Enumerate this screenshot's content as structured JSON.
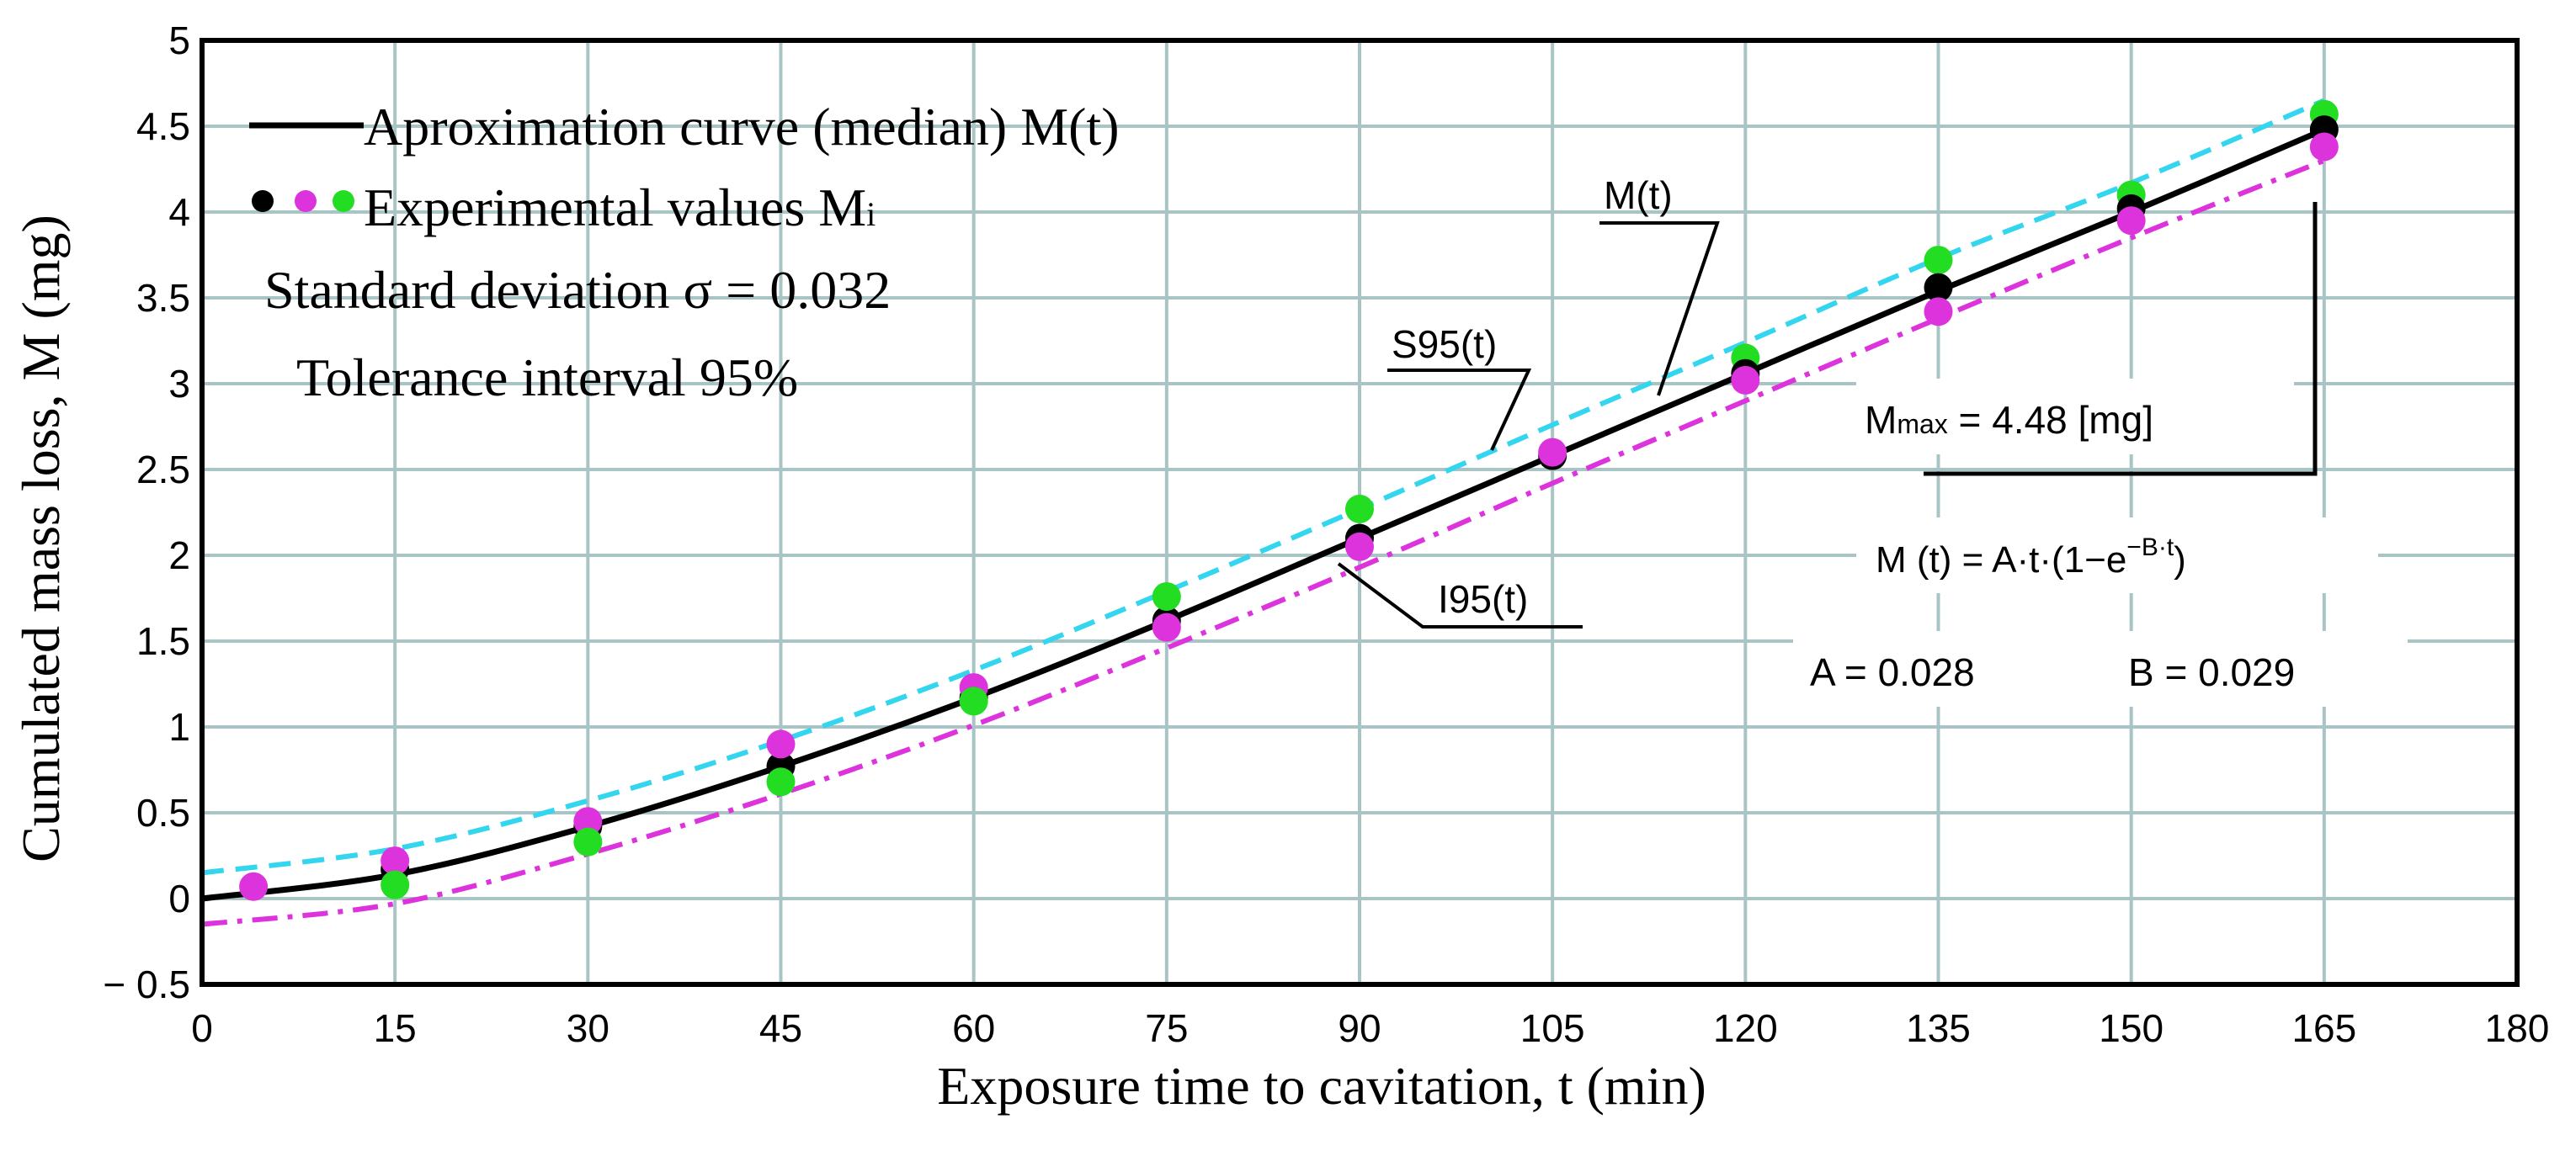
{
  "chart_data": {
    "type": "line",
    "xlabel": "Exposure time  to cavitation, t (min)",
    "ylabel": "Cumulated mass loss, M (mg)",
    "xlim": [
      0,
      180
    ],
    "ylim": [
      -0.5,
      5
    ],
    "x_ticks": [
      0,
      15,
      30,
      45,
      60,
      75,
      90,
      105,
      120,
      135,
      150,
      165,
      180
    ],
    "y_ticks": [
      -0.5,
      0,
      0.5,
      1,
      1.5,
      2,
      2.5,
      3,
      3.5,
      4,
      4.5,
      5
    ],
    "y_tick_labels": [
      "− 0.5",
      "0",
      "0.5",
      "1",
      "1.5",
      "2",
      "2.5",
      "3",
      "3.5",
      "4",
      "4.5",
      "5"
    ],
    "grid": true,
    "series": [
      {
        "name": "Aproximation curve (median) M(t)",
        "style": "solid",
        "color": "#000000",
        "x": [
          0,
          15,
          30,
          45,
          60,
          75,
          90,
          105,
          120,
          135,
          150,
          165
        ],
        "y": [
          0.0,
          0.14,
          0.42,
          0.77,
          1.17,
          1.62,
          2.1,
          2.58,
          3.06,
          3.54,
          4.0,
          4.48
        ]
      },
      {
        "name": "S95(t)",
        "style": "dashed",
        "color": "#33d6ee",
        "x": [
          0,
          15,
          30,
          45,
          60,
          75,
          90,
          105,
          120,
          135,
          150,
          165
        ],
        "y": [
          0.15,
          0.29,
          0.57,
          0.92,
          1.33,
          1.79,
          2.27,
          2.76,
          3.24,
          3.73,
          4.17,
          4.65
        ]
      },
      {
        "name": "I95(t)",
        "style": "dash-dot",
        "color": "#dd33dd",
        "x": [
          0,
          15,
          30,
          45,
          60,
          75,
          90,
          105,
          120,
          135,
          150,
          165
        ],
        "y": [
          -0.15,
          -0.03,
          0.26,
          0.61,
          1.01,
          1.46,
          1.93,
          2.42,
          2.9,
          3.38,
          3.85,
          4.3
        ]
      }
    ],
    "experimental_points": [
      {
        "color": "#dd33dd",
        "x": 4,
        "y": 0.07
      },
      {
        "color": "#000000",
        "x": 15,
        "y": 0.17
      },
      {
        "color": "#dd33dd",
        "x": 15,
        "y": 0.22
      },
      {
        "color": "#22dd22",
        "x": 15,
        "y": 0.08
      },
      {
        "color": "#000000",
        "x": 30,
        "y": 0.42
      },
      {
        "color": "#dd33dd",
        "x": 30,
        "y": 0.45
      },
      {
        "color": "#22dd22",
        "x": 30,
        "y": 0.33
      },
      {
        "color": "#000000",
        "x": 45,
        "y": 0.77
      },
      {
        "color": "#dd33dd",
        "x": 45,
        "y": 0.9
      },
      {
        "color": "#22dd22",
        "x": 45,
        "y": 0.68
      },
      {
        "color": "#000000",
        "x": 60,
        "y": 1.17
      },
      {
        "color": "#dd33dd",
        "x": 60,
        "y": 1.23
      },
      {
        "color": "#22dd22",
        "x": 60,
        "y": 1.15
      },
      {
        "color": "#000000",
        "x": 75,
        "y": 1.62
      },
      {
        "color": "#dd33dd",
        "x": 75,
        "y": 1.58
      },
      {
        "color": "#22dd22",
        "x": 75,
        "y": 1.76
      },
      {
        "color": "#000000",
        "x": 90,
        "y": 2.1
      },
      {
        "color": "#dd33dd",
        "x": 90,
        "y": 2.05
      },
      {
        "color": "#22dd22",
        "x": 90,
        "y": 2.27
      },
      {
        "color": "#000000",
        "x": 105,
        "y": 2.58
      },
      {
        "color": "#dd33dd",
        "x": 105,
        "y": 2.6
      },
      {
        "color": "#22dd22",
        "x": 120,
        "y": 3.15
      },
      {
        "color": "#000000",
        "x": 120,
        "y": 3.06
      },
      {
        "color": "#dd33dd",
        "x": 120,
        "y": 3.02
      },
      {
        "color": "#22dd22",
        "x": 135,
        "y": 3.72
      },
      {
        "color": "#000000",
        "x": 135,
        "y": 3.56
      },
      {
        "color": "#dd33dd",
        "x": 135,
        "y": 3.42
      },
      {
        "color": "#22dd22",
        "x": 150,
        "y": 4.1
      },
      {
        "color": "#000000",
        "x": 150,
        "y": 4.02
      },
      {
        "color": "#dd33dd",
        "x": 150,
        "y": 3.95
      },
      {
        "color": "#22dd22",
        "x": 165,
        "y": 4.57
      },
      {
        "color": "#000000",
        "x": 165,
        "y": 4.48
      },
      {
        "color": "#dd33dd",
        "x": 165,
        "y": 4.38
      }
    ],
    "legend": {
      "line_label": "Aproximation curve (median) M(t)",
      "points_label_main": "Experimental values M",
      "points_label_sub": "i",
      "marker_colors": [
        "#000000",
        "#dd33dd",
        "#22dd22"
      ],
      "std_dev": "Standard deviation σ = 0.032",
      "tolerance": "Tolerance interval 95%"
    },
    "annotations": {
      "m_label": "M(t)",
      "s95_label": "S95(t)",
      "i95_label": "I95(t)",
      "mmax_main": "M",
      "mmax_sub": "max",
      "mmax_value": " = 4.48 [mg]",
      "formula_prefix": "M (t) = A·t·(1−e",
      "formula_sup": "−B·t",
      "formula_suffix": ")",
      "a_value": "A = 0.028",
      "b_value": "B = 0.029"
    }
  },
  "colors": {
    "grid": "#a8c4c4",
    "axis": "#000000",
    "median": "#000000",
    "s95": "#33d6ee",
    "i95": "#dd33dd",
    "green": "#22dd22"
  }
}
